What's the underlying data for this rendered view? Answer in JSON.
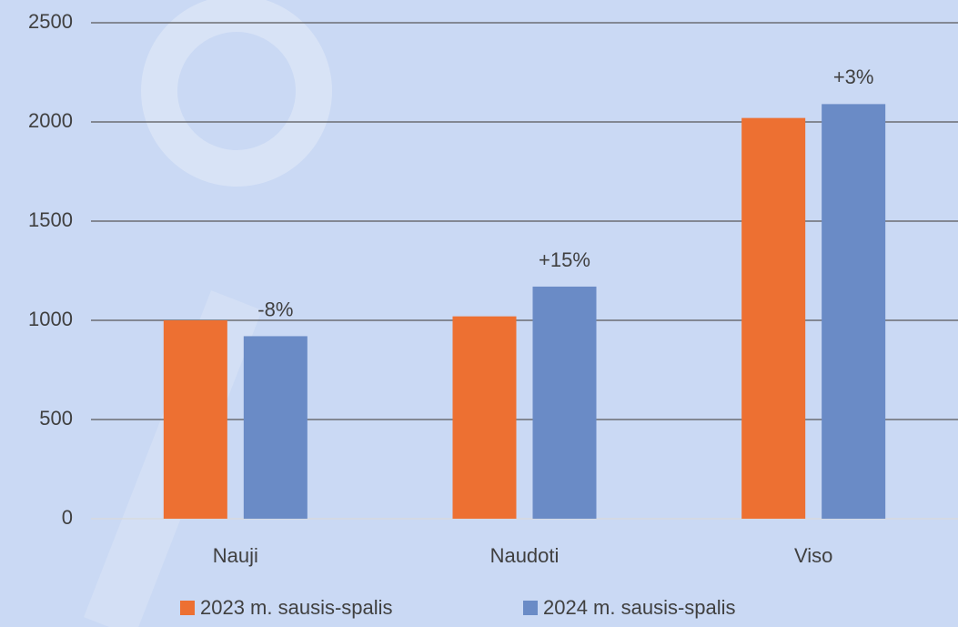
{
  "chart_data": {
    "type": "bar",
    "categories": [
      "Nauji",
      "Naudoti",
      "Viso"
    ],
    "series": [
      {
        "name": "2023 m. sausis-spalis",
        "color": "#ed7032",
        "values": [
          1000,
          1020,
          2020
        ]
      },
      {
        "name": "2024 m. sausis-spalis",
        "color": "#6a8bc6",
        "values": [
          920,
          1170,
          2090
        ]
      }
    ],
    "annotations": [
      "-8%",
      "+15%",
      "+3%"
    ],
    "ylim": [
      0,
      2500
    ],
    "yticks": [
      0,
      500,
      1000,
      1500,
      2000,
      2500
    ],
    "grid": true,
    "legend": "bottom"
  }
}
